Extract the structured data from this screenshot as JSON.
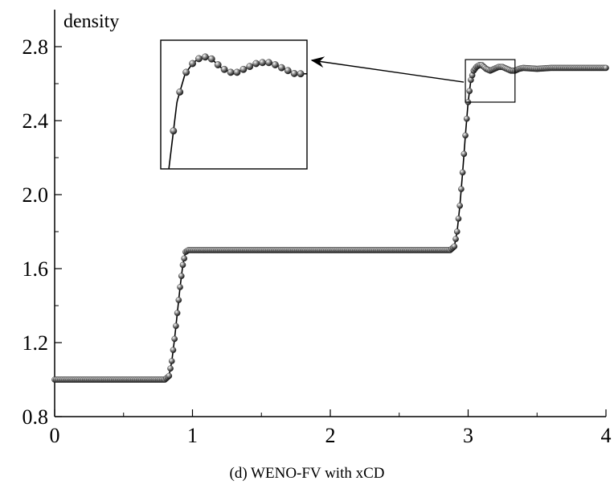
{
  "chart_data": {
    "type": "line",
    "ylabel": "density",
    "xlabel": "",
    "caption": "(d) WENO-FV with xCD",
    "xlim": [
      0,
      4
    ],
    "ylim": [
      0.8,
      3.0
    ],
    "x_ticks": [
      0,
      1,
      2,
      3,
      4
    ],
    "x_tick_labels": [
      "0",
      "1",
      "2",
      "3",
      "4"
    ],
    "y_ticks": [
      0.8,
      1.2,
      1.6,
      2.0,
      2.4,
      2.8
    ],
    "y_tick_labels": [
      "0.8",
      "1.2",
      "1.6",
      "2.0",
      "2.4",
      "2.8"
    ],
    "grid": false,
    "series": [
      {
        "style": "line-with-ball-markers",
        "color": "#000000",
        "profile_x": [
          0,
          0.8,
          0.83,
          0.85,
          0.87,
          0.89,
          0.91,
          0.93,
          0.95,
          0.97,
          4.0
        ],
        "profile_y": [
          1.0,
          1.0,
          1.02,
          1.1,
          1.22,
          1.36,
          1.5,
          1.62,
          1.69,
          1.7,
          1.7
        ],
        "shock_x": [
          2.87,
          2.9,
          2.92,
          2.94,
          2.96,
          2.98,
          3.0,
          3.02,
          3.04,
          3.06,
          3.08,
          3.1,
          3.13,
          3.16,
          3.19,
          3.22,
          3.25,
          3.28,
          3.31,
          3.34,
          3.37,
          3.4,
          3.5,
          3.6
        ],
        "shock_y": [
          1.7,
          1.72,
          1.8,
          1.94,
          2.12,
          2.32,
          2.5,
          2.62,
          2.67,
          2.69,
          2.7,
          2.7,
          2.68,
          2.67,
          2.68,
          2.69,
          2.69,
          2.68,
          2.67,
          2.67,
          2.68,
          2.685,
          2.68,
          2.685
        ],
        "plateau_value": 2.68
      }
    ],
    "inset": {
      "zoom_box_x": [
        2.98,
        3.34
      ],
      "zoom_box_y": [
        2.5,
        2.73
      ],
      "arrow": true
    }
  }
}
